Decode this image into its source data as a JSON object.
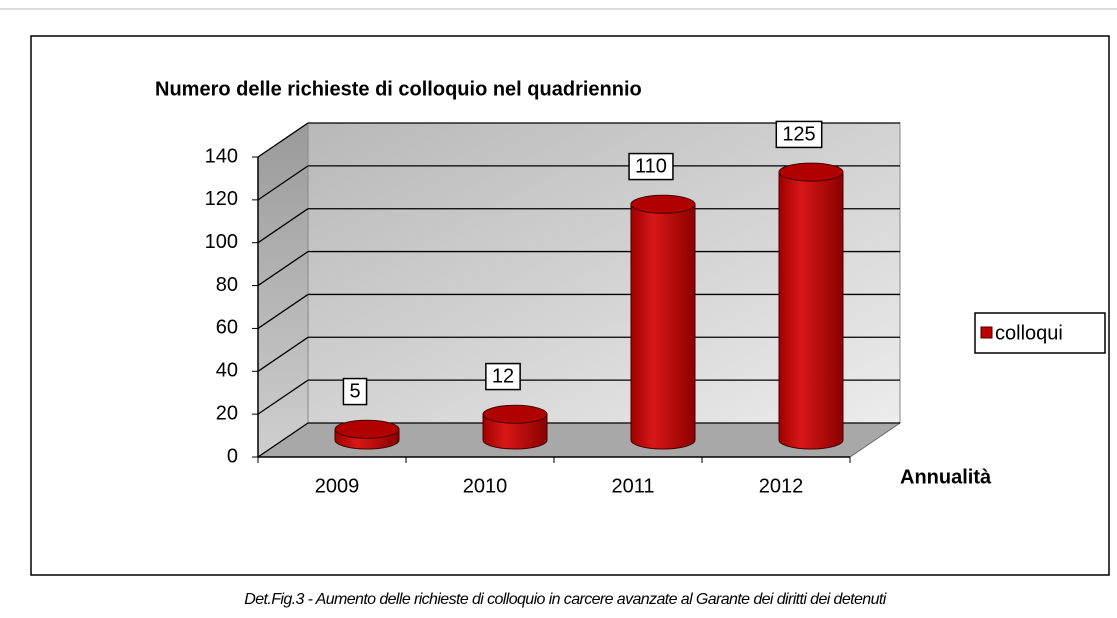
{
  "chart_data": {
    "type": "bar3d",
    "title": "Numero delle richieste di colloquio nel quadriennio",
    "x_label": "Annualità",
    "caption": "Det.Fig.3 - Aumento delle richieste di colloquio in carcere avanzate al Garante dei diritti dei detenuti",
    "categories": [
      "2009",
      "2010",
      "2011",
      "2012"
    ],
    "series": [
      {
        "name": "colloqui",
        "color": "#c00000",
        "values": [
          5,
          12,
          110,
          125
        ]
      }
    ],
    "ylim": [
      0,
      140
    ],
    "yticks": [
      0,
      20,
      40,
      60,
      80,
      100,
      120,
      140
    ],
    "grid": true,
    "legend": "right"
  }
}
